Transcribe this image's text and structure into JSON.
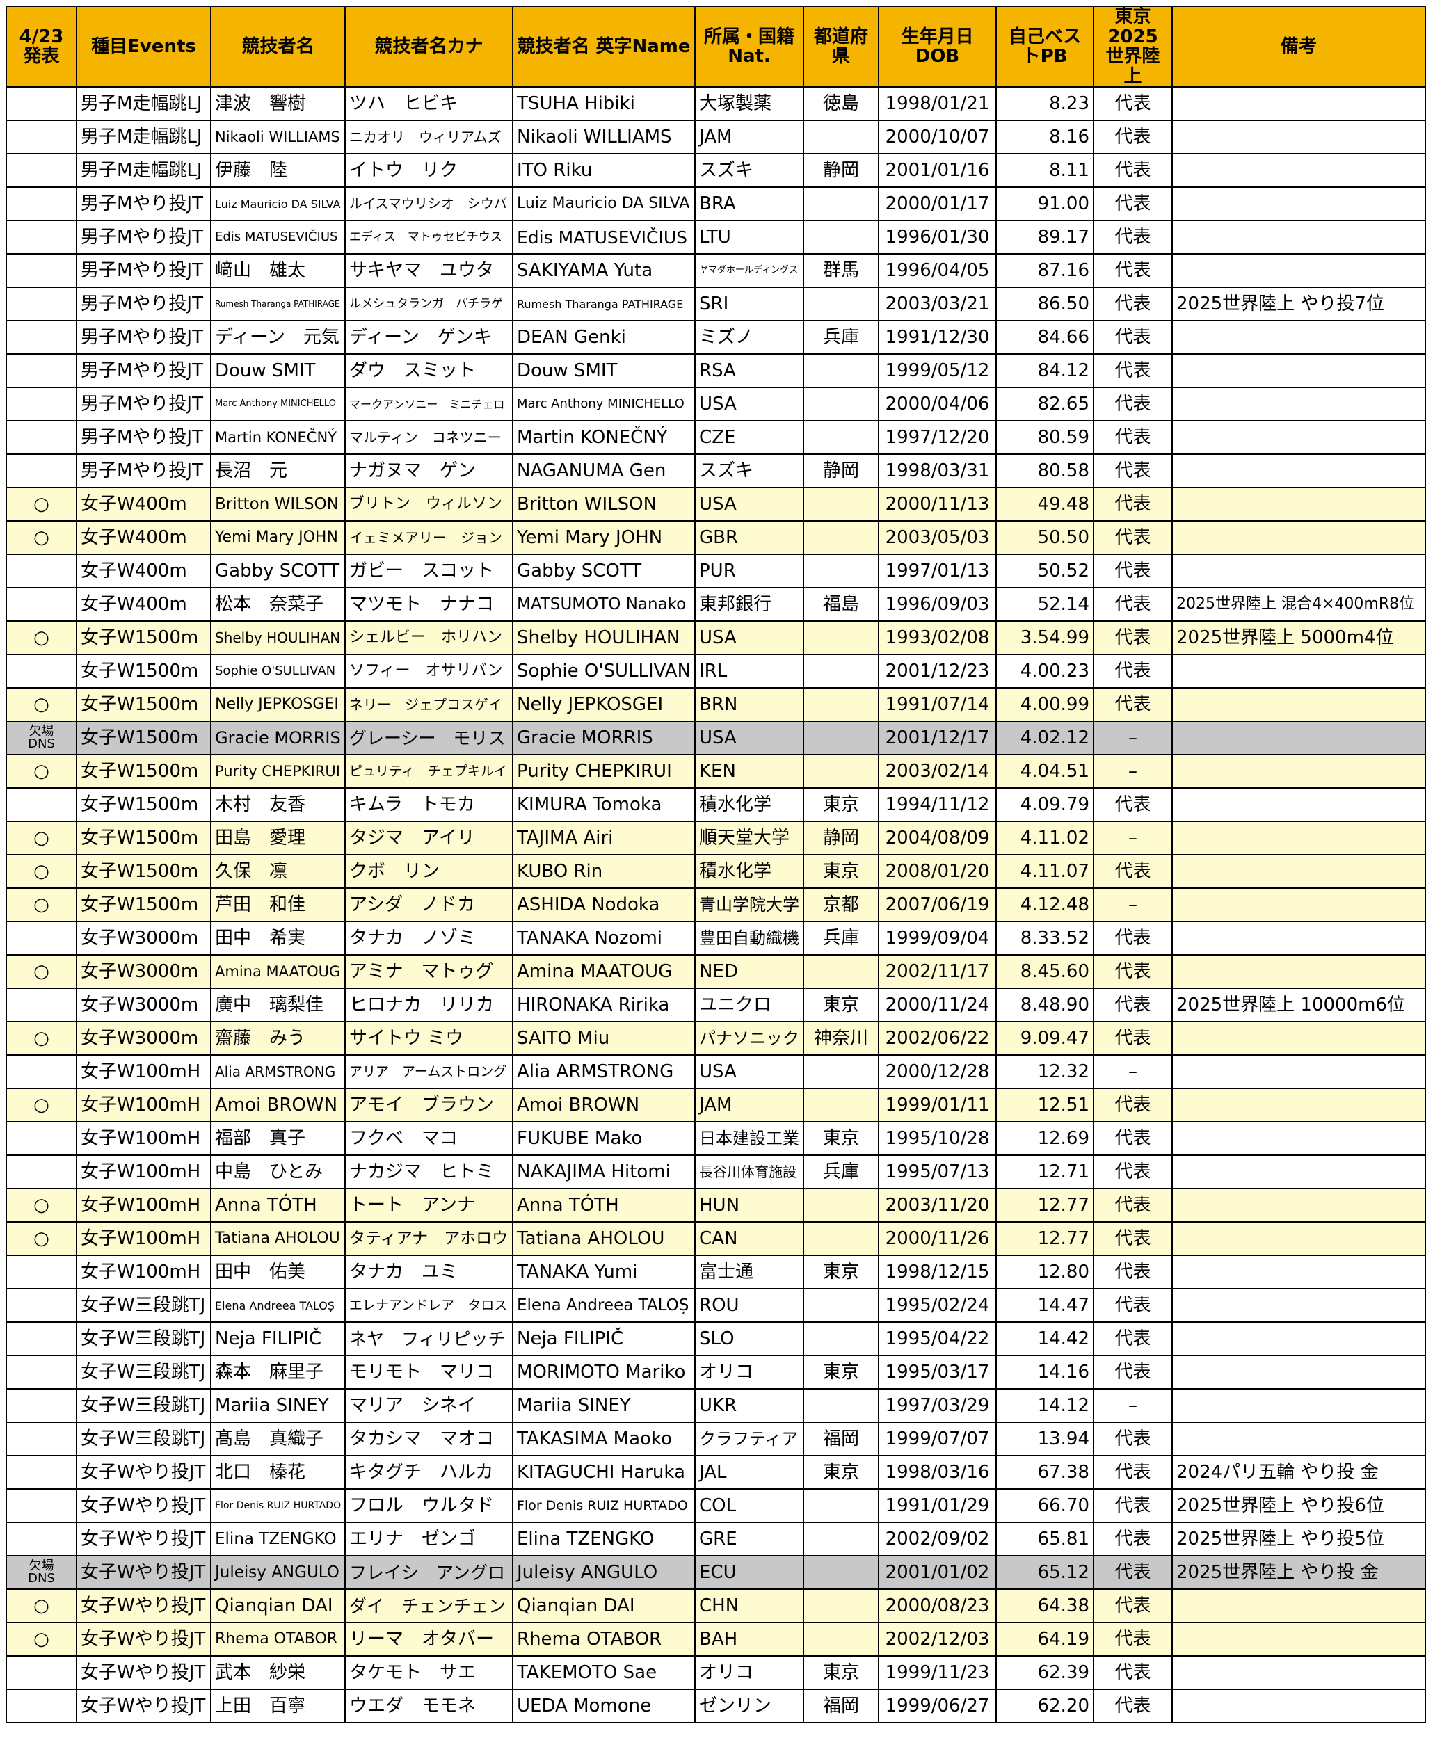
{
  "table": {
    "header": [
      "4/23発表",
      "種目Events",
      "競技者名",
      "競技者名カナ",
      "競技者名 英字Name",
      "所属・国籍Nat.",
      "都道府県",
      "生年月日DOB",
      "自己ベストPB",
      "東京2025\n世界陸上",
      "備考"
    ],
    "header_fill": "#f5b400",
    "rows": [
      [
        null,
        "男子M走幅跳LJ",
        "津波　響樹",
        "ツハ　ヒビキ",
        "TSUHA Hibiki",
        "大塚製薬",
        "徳島",
        "1998/01/21",
        "8.23",
        "代表",
        null
      ],
      [
        null,
        "男子M走幅跳LJ",
        "Nikaoli WILLIAMS",
        "ニカオリ　ウィリアムズ",
        "Nikaoli WILLIAMS",
        "JAM",
        null,
        "2000/10/07",
        "8.16",
        "代表",
        null
      ],
      [
        null,
        "男子M走幅跳LJ",
        "伊藤　陸",
        "イトウ　リク",
        "ITO Riku",
        "スズキ",
        "静岡",
        "2001/01/16",
        "8.11",
        "代表",
        null
      ],
      [
        null,
        "男子Mやり投JT",
        "Luiz Mauricio DA SILVA",
        "ルイスマウリシオ　シウバ",
        "Luiz Mauricio DA SILVA",
        "BRA",
        null,
        "2000/01/17",
        "91.00",
        "代表",
        null
      ],
      [
        null,
        "男子Mやり投JT",
        "Edis MATUSEVIČIUS",
        "エディス　マトゥセビチウス",
        "Edis MATUSEVIČIUS",
        "LTU",
        null,
        "1996/01/30",
        "89.17",
        "代表",
        null
      ],
      [
        null,
        "男子Mやり投JT",
        "﨑山　雄太",
        "サキヤマ　ユウタ",
        "SAKIYAMA Yuta",
        "ヤマダホールディングス",
        "群馬",
        "1996/04/05",
        "87.16",
        "代表",
        null
      ],
      [
        null,
        "男子Mやり投JT",
        "Rumesh Tharanga PATHIRAGE",
        "ルメシュタランガ　パチラゲ",
        "Rumesh Tharanga PATHIRAGE",
        "SRI",
        null,
        "2003/03/21",
        "86.50",
        "代表",
        "2025世界陸上 やり投7位"
      ],
      [
        null,
        "男子Mやり投JT",
        "ディーン　元気",
        "ディーン　ゲンキ",
        "DEAN Genki",
        "ミズノ",
        "兵庫",
        "1991/12/30",
        "84.66",
        "代表",
        null
      ],
      [
        null,
        "男子Mやり投JT",
        "Douw SMIT",
        "ダウ　スミット",
        "Douw SMIT",
        "RSA",
        null,
        "1999/05/12",
        "84.12",
        "代表",
        null
      ],
      [
        null,
        "男子Mやり投JT",
        "Marc Anthony MINICHELLO",
        "マークアンソニー　ミニチェロ",
        "Marc Anthony MINICHELLO",
        "USA",
        null,
        "2000/04/06",
        "82.65",
        "代表",
        null
      ],
      [
        null,
        "男子Mやり投JT",
        "Martin KONEČNÝ",
        "マルティン　コネツニー",
        "Martin KONEČNÝ",
        "CZE",
        null,
        "1997/12/20",
        "80.59",
        "代表",
        null
      ],
      [
        null,
        "男子Mやり投JT",
        "長沼　元",
        "ナガヌマ　ゲン",
        "NAGANUMA Gen",
        "スズキ",
        "静岡",
        "1998/03/31",
        "80.58",
        "代表",
        null
      ],
      [
        "○",
        "女子W400m",
        "Britton WILSON",
        "ブリトン　ウィルソン",
        "Britton WILSON",
        "USA",
        null,
        "2000/11/13",
        "49.48",
        "代表",
        null
      ],
      [
        "○",
        "女子W400m",
        "Yemi Mary JOHN",
        "イェミメアリー　ジョン",
        "Yemi Mary JOHN",
        "GBR",
        null,
        "2003/05/03",
        "50.50",
        "代表",
        null
      ],
      [
        null,
        "女子W400m",
        "Gabby SCOTT",
        "ガビー　スコット",
        "Gabby SCOTT",
        "PUR",
        null,
        "1997/01/13",
        "50.52",
        "代表",
        null
      ],
      [
        null,
        "女子W400m",
        "松本　奈菜子",
        "マツモト　ナナコ",
        "MATSUMOTO Nanako",
        "東邦銀行",
        "福島",
        "1996/09/03",
        "52.14",
        "代表",
        "2025世界陸上 混合4×400mR8位"
      ],
      [
        "○",
        "女子W1500m",
        "Shelby HOULIHAN",
        "シェルビー　ホリハン",
        "Shelby HOULIHAN",
        "USA",
        null,
        "1993/02/08",
        "3.54.99",
        "代表",
        "2025世界陸上 5000m4位"
      ],
      [
        null,
        "女子W1500m",
        "Sophie O'SULLIVAN",
        "ソフィー　オサリバン",
        "Sophie O'SULLIVAN",
        "IRL",
        null,
        "2001/12/23",
        "4.00.23",
        "代表",
        null
      ],
      [
        "○",
        "女子W1500m",
        "Nelly JEPKOSGEI",
        "ネリー　ジェプコスゲイ",
        "Nelly JEPKOSGEI",
        "BRN",
        null,
        "1991/07/14",
        "4.00.99",
        "代表",
        null
      ],
      [
        "欠場\nDNS",
        "女子W1500m",
        "Gracie MORRIS",
        "グレーシー　モリス",
        "Gracie MORRIS",
        "USA",
        null,
        "2001/12/17",
        "4.02.12",
        "–",
        null
      ],
      [
        "○",
        "女子W1500m",
        "Purity CHEPKIRUI",
        "ピュリティ　チェプキルイ",
        "Purity CHEPKIRUI",
        "KEN",
        null,
        "2003/02/14",
        "4.04.51",
        "–",
        null
      ],
      [
        null,
        "女子W1500m",
        "木村　友香",
        "キムラ　トモカ",
        "KIMURA Tomoka",
        "積水化学",
        "東京",
        "1994/11/12",
        "4.09.79",
        "代表",
        null
      ],
      [
        "○",
        "女子W1500m",
        "田島　愛理",
        "タジマ　アイリ",
        "TAJIMA Airi",
        "順天堂大学",
        "静岡",
        "2004/08/09",
        "4.11.02",
        "–",
        null
      ],
      [
        "○",
        "女子W1500m",
        "久保　凛",
        "クボ　リン",
        "KUBO Rin",
        "積水化学",
        "東京",
        "2008/01/20",
        "4.11.07",
        "代表",
        null
      ],
      [
        "○",
        "女子W1500m",
        "芦田　和佳",
        "アシダ　ノドカ",
        "ASHIDA Nodoka",
        "青山学院大学",
        "京都",
        "2007/06/19",
        "4.12.48",
        "–",
        null
      ],
      [
        null,
        "女子W3000m",
        "田中　希実",
        "タナカ　ノゾミ",
        "TANAKA Nozomi",
        "豊田自動織機",
        "兵庫",
        "1999/09/04",
        "8.33.52",
        "代表",
        null
      ],
      [
        "○",
        "女子W3000m",
        "Amina MAATOUG",
        "アミナ　マトゥグ",
        "Amina MAATOUG",
        "NED",
        null,
        "2002/11/17",
        "8.45.60",
        "代表",
        null
      ],
      [
        null,
        "女子W3000m",
        "廣中　璃梨佳",
        "ヒロナカ　リリカ",
        "HIRONAKA Ririka",
        "ユニクロ",
        "東京",
        "2000/11/24",
        "8.48.90",
        "代表",
        "2025世界陸上 10000m6位"
      ],
      [
        "○",
        "女子W3000m",
        "齋藤　みう",
        "サイトウ ミウ",
        "SAITO Miu",
        "パナソニック",
        "神奈川",
        "2002/06/22",
        "9.09.47",
        "代表",
        null
      ],
      [
        null,
        "女子W100mH",
        "Alia ARMSTRONG",
        "アリア　アームストロング",
        "Alia ARMSTRONG",
        "USA",
        null,
        "2000/12/28",
        "12.32",
        "–",
        null
      ],
      [
        "○",
        "女子W100mH",
        "Amoi BROWN",
        "アモイ　ブラウン",
        "Amoi BROWN",
        "JAM",
        null,
        "1999/01/11",
        "12.51",
        "代表",
        null
      ],
      [
        null,
        "女子W100mH",
        "福部　真子",
        "フクベ　マコ",
        "FUKUBE Mako",
        "日本建設工業",
        "東京",
        "1995/10/28",
        "12.69",
        "代表",
        null
      ],
      [
        null,
        "女子W100mH",
        "中島　ひとみ",
        "ナカジマ　ヒトミ",
        "NAKAJIMA Hitomi",
        "長谷川体育施設",
        "兵庫",
        "1995/07/13",
        "12.71",
        "代表",
        null
      ],
      [
        "○",
        "女子W100mH",
        "Anna TÓTH",
        "トート　アンナ",
        "Anna TÓTH",
        "HUN",
        null,
        "2003/11/20",
        "12.77",
        "代表",
        null
      ],
      [
        "○",
        "女子W100mH",
        "Tatiana AHOLOU",
        "タティアナ　アホロウ",
        "Tatiana AHOLOU",
        "CAN",
        null,
        "2000/11/26",
        "12.77",
        "代表",
        null
      ],
      [
        null,
        "女子W100mH",
        "田中　佑美",
        "タナカ　ユミ",
        "TANAKA Yumi",
        "富士通",
        "東京",
        "1998/12/15",
        "12.80",
        "代表",
        null
      ],
      [
        null,
        "女子W三段跳TJ",
        "Elena Andreea TALOȘ",
        "エレナアンドレア　タロス",
        "Elena Andreea TALOȘ",
        "ROU",
        null,
        "1995/02/24",
        "14.47",
        "代表",
        null
      ],
      [
        null,
        "女子W三段跳TJ",
        "Neja FILIPIČ",
        "ネヤ　フィリピッチ",
        "Neja FILIPIČ",
        "SLO",
        null,
        "1995/04/22",
        "14.42",
        "代表",
        null
      ],
      [
        null,
        "女子W三段跳TJ",
        "森本　麻里子",
        "モリモト　マリコ",
        "MORIMOTO Mariko",
        "オリコ",
        "東京",
        "1995/03/17",
        "14.16",
        "代表",
        null
      ],
      [
        null,
        "女子W三段跳TJ",
        "Mariia SINEY",
        "マリア　シネイ",
        "Mariia SINEY",
        "UKR",
        null,
        "1997/03/29",
        "14.12",
        "–",
        null
      ],
      [
        null,
        "女子W三段跳TJ",
        "髙島　真織子",
        "タカシマ　マオコ",
        "TAKASIMA Maoko",
        "クラフティア",
        "福岡",
        "1999/07/07",
        "13.94",
        "代表",
        null
      ],
      [
        null,
        "女子Wやり投JT",
        "北口　榛花",
        "キタグチ　ハルカ",
        "KITAGUCHI Haruka",
        "JAL",
        "東京",
        "1998/03/16",
        "67.38",
        "代表",
        "2024パリ五輪 やり投 金"
      ],
      [
        null,
        "女子Wやり投JT",
        "Flor Denis RUIZ HURTADO",
        "フロル　ウルタド",
        "Flor Denis RUIZ HURTADO",
        "COL",
        null,
        "1991/01/29",
        "66.70",
        "代表",
        "2025世界陸上 やり投6位"
      ],
      [
        null,
        "女子Wやり投JT",
        "Elina TZENGKO",
        "エリナ　ゼンゴ",
        "Elina TZENGKO",
        "GRE",
        null,
        "2002/09/02",
        "65.81",
        "代表",
        "2025世界陸上 やり投5位"
      ],
      [
        "欠場\nDNS",
        "女子Wやり投JT",
        "Juleisy ANGULO",
        "フレイシ　アングロ",
        "Juleisy ANGULO",
        "ECU",
        null,
        "2001/01/02",
        "65.12",
        "代表",
        "2025世界陸上 やり投 金"
      ],
      [
        "○",
        "女子Wやり投JT",
        "Qianqian DAI",
        "ダイ　チェンチェン",
        "Qianqian DAI",
        "CHN",
        null,
        "2000/08/23",
        "64.38",
        "代表",
        null
      ],
      [
        "○",
        "女子Wやり投JT",
        "Rhema OTABOR",
        "リーマ　オタバー",
        "Rhema OTABOR",
        "BAH",
        null,
        "2002/12/03",
        "64.19",
        "代表",
        null
      ],
      [
        null,
        "女子Wやり投JT",
        "武本　紗栄",
        "タケモト　サエ",
        "TAKEMOTO Sae",
        "オリコ",
        "東京",
        "1999/11/23",
        "62.39",
        "代表",
        null
      ],
      [
        null,
        "女子Wやり投JT",
        "上田　百寧",
        "ウエダ　モモネ",
        "UEDA Momone",
        "ゼンリン",
        "福岡",
        "1999/06/27",
        "62.20",
        "代表",
        null
      ]
    ],
    "row_fills": [
      "#ffffff",
      "#ffffff",
      "#ffffff",
      "#ffffff",
      "#ffffff",
      "#ffffff",
      "#ffffff",
      "#ffffff",
      "#ffffff",
      "#ffffff",
      "#ffffff",
      "#ffffff",
      "#fffbd0",
      "#fffbd0",
      "#ffffff",
      "#ffffff",
      "#fffbd0",
      "#ffffff",
      "#fffbd0",
      "#c8c8c8",
      "#fffbd0",
      "#ffffff",
      "#fffbd0",
      "#fffbd0",
      "#fffbd0",
      "#ffffff",
      "#fffbd0",
      "#ffffff",
      "#fffbd0",
      "#ffffff",
      "#fffbd0",
      "#ffffff",
      "#ffffff",
      "#fffbd0",
      "#fffbd0",
      "#ffffff",
      "#ffffff",
      "#ffffff",
      "#ffffff",
      "#ffffff",
      "#ffffff",
      "#ffffff",
      "#ffffff",
      "#ffffff",
      "#c8c8c8",
      "#fffbd0",
      "#fffbd0",
      "#ffffff",
      "#ffffff"
    ]
  }
}
